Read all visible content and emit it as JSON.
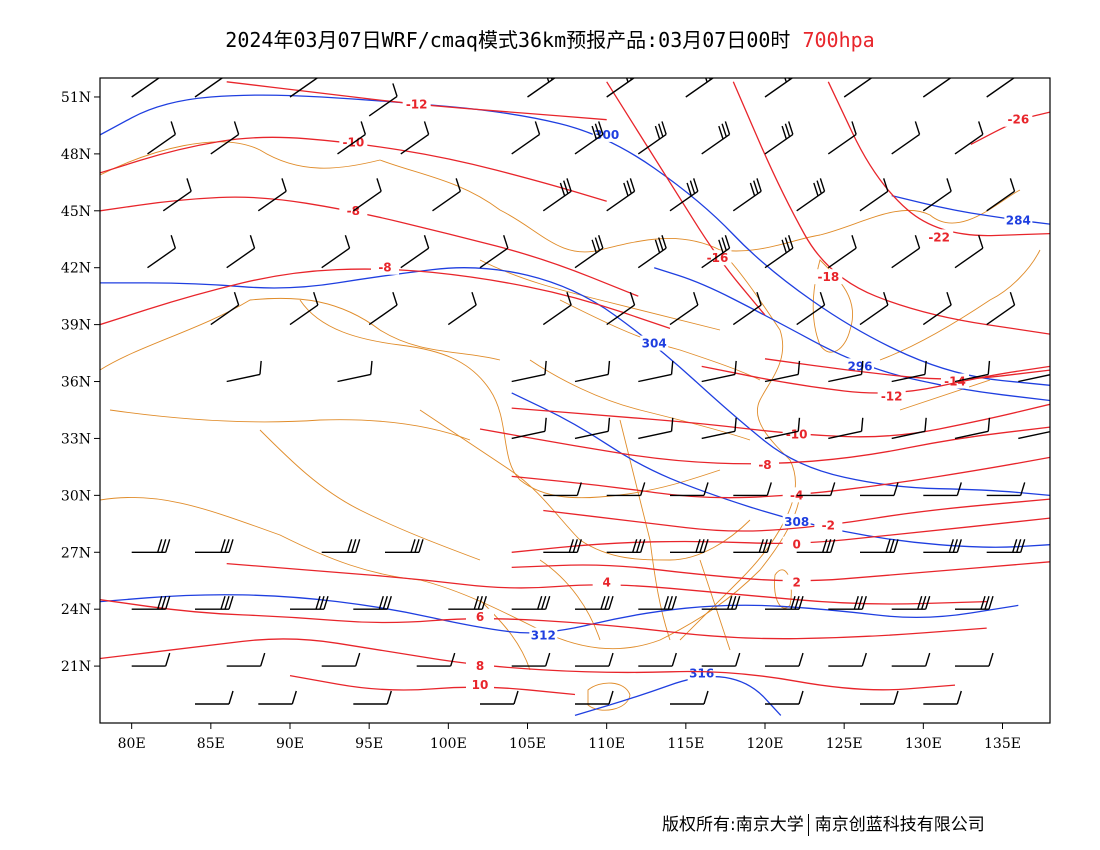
{
  "title": {
    "main": "2024年03月07日WRF/cmaq模式36km预报产品:03月07日00时 ",
    "level": "700hpa"
  },
  "footer": {
    "left": "版权所有:南京大学",
    "right": "南京创蓝科技有限公司"
  },
  "colors": {
    "temperature": "#e8252b",
    "height": "#1f3fe0",
    "border": "#e08c2a",
    "wind": "#000000"
  },
  "map": {
    "lon_range": [
      78,
      138
    ],
    "lat_range": [
      18,
      52
    ],
    "lon_ticks": [
      {
        "v": 80,
        "t": "80E"
      },
      {
        "v": 85,
        "t": "85E"
      },
      {
        "v": 90,
        "t": "90E"
      },
      {
        "v": 95,
        "t": "95E"
      },
      {
        "v": 100,
        "t": "100E"
      },
      {
        "v": 105,
        "t": "105E"
      },
      {
        "v": 110,
        "t": "110E"
      },
      {
        "v": 115,
        "t": "115E"
      },
      {
        "v": 120,
        "t": "120E"
      },
      {
        "v": 125,
        "t": "125E"
      },
      {
        "v": 130,
        "t": "130E"
      },
      {
        "v": 135,
        "t": "135E"
      }
    ],
    "lat_ticks": [
      {
        "v": 21,
        "t": "21N"
      },
      {
        "v": 24,
        "t": "24N"
      },
      {
        "v": 27,
        "t": "27N"
      },
      {
        "v": 30,
        "t": "30N"
      },
      {
        "v": 33,
        "t": "33N"
      },
      {
        "v": 36,
        "t": "36N"
      },
      {
        "v": 39,
        "t": "39N"
      },
      {
        "v": 42,
        "t": "42N"
      },
      {
        "v": 45,
        "t": "45N"
      },
      {
        "v": 48,
        "t": "48N"
      },
      {
        "v": 51,
        "t": "51N"
      }
    ]
  },
  "temperature_contours": [
    {
      "label": "-12",
      "points": [
        [
          86,
          51.8
        ],
        [
          92,
          51.2
        ],
        [
          98,
          50.6
        ],
        [
          104,
          50.2
        ],
        [
          110,
          49.8
        ]
      ]
    },
    {
      "label": "-10",
      "points": [
        [
          78,
          47.0
        ],
        [
          83,
          48.3
        ],
        [
          88,
          49.0
        ],
        [
          94,
          48.6
        ],
        [
          100,
          47.8
        ],
        [
          106,
          46.5
        ],
        [
          110,
          45.5
        ]
      ]
    },
    {
      "label": "-8",
      "points": [
        [
          78,
          45.0
        ],
        [
          83,
          45.6
        ],
        [
          88,
          45.8
        ],
        [
          94,
          45.0
        ],
        [
          100,
          43.8
        ],
        [
          106,
          42.5
        ],
        [
          112,
          40.5
        ]
      ]
    },
    {
      "label": "-8",
      "points": [
        [
          78,
          39.0
        ],
        [
          84,
          40.6
        ],
        [
          90,
          41.8
        ],
        [
          96,
          42.0
        ],
        [
          102,
          41.5
        ],
        [
          108,
          40.5
        ],
        [
          114,
          38.8
        ]
      ]
    },
    {
      "label": "-16",
      "points": [
        [
          110,
          51.8
        ],
        [
          114,
          46.5
        ],
        [
          117,
          42.5
        ],
        [
          120,
          39.5
        ]
      ]
    },
    {
      "label": "-18",
      "points": [
        [
          118,
          51.8
        ],
        [
          121,
          46.0
        ],
        [
          124,
          41.5
        ],
        [
          130,
          39.5
        ],
        [
          138,
          38.5
        ]
      ]
    },
    {
      "label": "-22",
      "points": [
        [
          124,
          51.8
        ],
        [
          127,
          46.5
        ],
        [
          131,
          43.6
        ],
        [
          138,
          43.8
        ]
      ]
    },
    {
      "label": "-26",
      "points": [
        [
          133,
          48.5
        ],
        [
          136,
          49.8
        ],
        [
          138,
          50.2
        ]
      ]
    },
    {
      "label": "-14",
      "points": [
        [
          120,
          37.2
        ],
        [
          126,
          36.5
        ],
        [
          132,
          36.0
        ],
        [
          138,
          36.6
        ]
      ]
    },
    {
      "label": "-12",
      "points": [
        [
          116,
          36.8
        ],
        [
          122,
          35.8
        ],
        [
          128,
          35.2
        ],
        [
          134,
          36.3
        ],
        [
          138,
          36.8
        ]
      ]
    },
    {
      "label": "-10",
      "points": [
        [
          104,
          34.6
        ],
        [
          110,
          34.2
        ],
        [
          116,
          33.8
        ],
        [
          122,
          33.2
        ],
        [
          128,
          33.0
        ],
        [
          134,
          34.0
        ],
        [
          138,
          34.8
        ]
      ]
    },
    {
      "label": "-8",
      "points": [
        [
          102,
          33.5
        ],
        [
          108,
          32.6
        ],
        [
          114,
          31.8
        ],
        [
          120,
          31.6
        ],
        [
          126,
          32.0
        ],
        [
          132,
          33.0
        ],
        [
          138,
          33.6
        ]
      ]
    },
    {
      "label": "-4",
      "points": [
        [
          104,
          31.0
        ],
        [
          110,
          30.5
        ],
        [
          116,
          29.8
        ],
        [
          122,
          30.0
        ],
        [
          128,
          30.6
        ],
        [
          134,
          31.4
        ],
        [
          138,
          32.0
        ]
      ]
    },
    {
      "label": "-2",
      "points": [
        [
          106,
          29.2
        ],
        [
          112,
          28.6
        ],
        [
          118,
          28.0
        ],
        [
          124,
          28.4
        ],
        [
          130,
          29.2
        ],
        [
          138,
          29.8
        ]
      ]
    },
    {
      "label": "0",
      "points": [
        [
          104,
          27.0
        ],
        [
          110,
          27.5
        ],
        [
          116,
          27.6
        ],
        [
          122,
          27.4
        ],
        [
          128,
          27.9
        ],
        [
          138,
          28.8
        ]
      ]
    },
    {
      "label": "2",
      "points": [
        [
          104,
          26.2
        ],
        [
          110,
          26.4
        ],
        [
          116,
          25.8
        ],
        [
          122,
          25.4
        ],
        [
          128,
          25.8
        ],
        [
          138,
          26.5
        ]
      ]
    },
    {
      "label": "4",
      "points": [
        [
          86,
          26.4
        ],
        [
          92,
          26.0
        ],
        [
          98,
          25.6
        ],
        [
          104,
          25.0
        ],
        [
          110,
          25.4
        ],
        [
          118,
          24.8
        ],
        [
          126,
          24.2
        ],
        [
          134,
          24.4
        ]
      ]
    },
    {
      "label": "6",
      "points": [
        [
          78,
          24.5
        ],
        [
          84,
          23.8
        ],
        [
          90,
          23.6
        ],
        [
          96,
          23.2
        ],
        [
          102,
          23.6
        ],
        [
          110,
          23.2
        ],
        [
          118,
          22.4
        ],
        [
          126,
          22.5
        ],
        [
          134,
          23.0
        ]
      ]
    },
    {
      "label": "8",
      "points": [
        [
          78,
          21.4
        ],
        [
          84,
          22.0
        ],
        [
          90,
          22.6
        ],
        [
          96,
          21.8
        ],
        [
          102,
          21.0
        ],
        [
          110,
          20.6
        ],
        [
          118,
          20.8
        ],
        [
          126,
          19.6
        ],
        [
          132,
          20.0
        ]
      ]
    },
    {
      "label": "10",
      "points": [
        [
          90,
          20.5
        ],
        [
          96,
          19.6
        ],
        [
          102,
          20.0
        ],
        [
          108,
          19.5
        ]
      ]
    }
  ],
  "height_contours": [
    {
      "label": "300",
      "points": [
        [
          78,
          49.0
        ],
        [
          82,
          50.8
        ],
        [
          88,
          51.2
        ],
        [
          96,
          50.8
        ],
        [
          104,
          50.2
        ],
        [
          110,
          49.0
        ],
        [
          116,
          45.5
        ],
        [
          120,
          42.0
        ],
        [
          126,
          38.5
        ],
        [
          132,
          36.3
        ],
        [
          138,
          35.8
        ]
      ]
    },
    {
      "label": "304",
      "points": [
        [
          78,
          41.2
        ],
        [
          84,
          41.2
        ],
        [
          90,
          40.8
        ],
        [
          96,
          41.6
        ],
        [
          102,
          42.2
        ],
        [
          108,
          41.0
        ],
        [
          113,
          38.0
        ],
        [
          118,
          34.2
        ],
        [
          122,
          31.5
        ],
        [
          128,
          30.4
        ],
        [
          134,
          30.3
        ],
        [
          138,
          30.0
        ]
      ]
    },
    {
      "label": "308",
      "points": [
        [
          104,
          35.4
        ],
        [
          108,
          33.8
        ],
        [
          112,
          31.6
        ],
        [
          116,
          30.2
        ],
        [
          122,
          28.6
        ],
        [
          128,
          27.6
        ],
        [
          134,
          27.2
        ],
        [
          138,
          27.4
        ]
      ]
    },
    {
      "label": "312",
      "points": [
        [
          78,
          24.4
        ],
        [
          84,
          24.8
        ],
        [
          90,
          24.7
        ],
        [
          96,
          24.1
        ],
        [
          102,
          23.0
        ],
        [
          106,
          22.6
        ],
        [
          112,
          23.8
        ],
        [
          118,
          24.3
        ],
        [
          124,
          24.0
        ],
        [
          130,
          23.4
        ],
        [
          136,
          24.2
        ]
      ]
    },
    {
      "label": "316",
      "points": [
        [
          108,
          18.4
        ],
        [
          112,
          19.4
        ],
        [
          116,
          20.6
        ],
        [
          119,
          20.2
        ],
        [
          121,
          18.4
        ]
      ]
    },
    {
      "label": "284",
      "points": [
        [
          128,
          45.8
        ],
        [
          132,
          45.0
        ],
        [
          136,
          44.5
        ],
        [
          138,
          44.3
        ]
      ]
    },
    {
      "label": "296",
      "points": [
        [
          113,
          42.0
        ],
        [
          116,
          41.2
        ],
        [
          120,
          39.5
        ],
        [
          126,
          36.8
        ],
        [
          132,
          35.6
        ],
        [
          138,
          35.0
        ]
      ]
    }
  ],
  "wind_barbs": [
    [
      80,
      51
    ],
    [
      84,
      51
    ],
    [
      90,
      51
    ],
    [
      95,
      50
    ],
    [
      105,
      51
    ],
    [
      110,
      51
    ],
    [
      115,
      51
    ],
    [
      120,
      51
    ],
    [
      125,
      51
    ],
    [
      130,
      51
    ],
    [
      134,
      51
    ],
    [
      81,
      48
    ],
    [
      85,
      48
    ],
    [
      93,
      48
    ],
    [
      97,
      48
    ],
    [
      104,
      48
    ],
    [
      108,
      48
    ],
    [
      112,
      48
    ],
    [
      116,
      48
    ],
    [
      120,
      48
    ],
    [
      124,
      48
    ],
    [
      128,
      48
    ],
    [
      132,
      48
    ],
    [
      82,
      45
    ],
    [
      88,
      45
    ],
    [
      94,
      45
    ],
    [
      99,
      45
    ],
    [
      106,
      45
    ],
    [
      110,
      45
    ],
    [
      114,
      45
    ],
    [
      118,
      45
    ],
    [
      122,
      45
    ],
    [
      126,
      45
    ],
    [
      130,
      45
    ],
    [
      134,
      45
    ],
    [
      81,
      42
    ],
    [
      86,
      42
    ],
    [
      92,
      42
    ],
    [
      97,
      42
    ],
    [
      102,
      42
    ],
    [
      108,
      42
    ],
    [
      112,
      42
    ],
    [
      116,
      42
    ],
    [
      120,
      42
    ],
    [
      124,
      42
    ],
    [
      128,
      42
    ],
    [
      132,
      42
    ],
    [
      85,
      39
    ],
    [
      90,
      39
    ],
    [
      95,
      39
    ],
    [
      100,
      39
    ],
    [
      106,
      39
    ],
    [
      110,
      39
    ],
    [
      114,
      39
    ],
    [
      118,
      39
    ],
    [
      122,
      39
    ],
    [
      126,
      39
    ],
    [
      130,
      39
    ],
    [
      134,
      39
    ],
    [
      86,
      36
    ],
    [
      93,
      36
    ],
    [
      104,
      36
    ],
    [
      108,
      36
    ],
    [
      112,
      36
    ],
    [
      116,
      36
    ],
    [
      120,
      36
    ],
    [
      124,
      36
    ],
    [
      128,
      36
    ],
    [
      132,
      36
    ],
    [
      136,
      36
    ],
    [
      104,
      33
    ],
    [
      108,
      33
    ],
    [
      112,
      33
    ],
    [
      116,
      33
    ],
    [
      120,
      33
    ],
    [
      124,
      33
    ],
    [
      128,
      33
    ],
    [
      132,
      33
    ],
    [
      136,
      33
    ],
    [
      106,
      30
    ],
    [
      110,
      30
    ],
    [
      114,
      30
    ],
    [
      118,
      30
    ],
    [
      122,
      30
    ],
    [
      126,
      30
    ],
    [
      130,
      30
    ],
    [
      134,
      30
    ],
    [
      80,
      27
    ],
    [
      84,
      27
    ],
    [
      92,
      27
    ],
    [
      96,
      27
    ],
    [
      106,
      27
    ],
    [
      110,
      27
    ],
    [
      114,
      27
    ],
    [
      118,
      27
    ],
    [
      122,
      27
    ],
    [
      126,
      27
    ],
    [
      130,
      27
    ],
    [
      134,
      27
    ],
    [
      80,
      24
    ],
    [
      84,
      24
    ],
    [
      90,
      24
    ],
    [
      94,
      24
    ],
    [
      100,
      24
    ],
    [
      104,
      24
    ],
    [
      108,
      24
    ],
    [
      112,
      24
    ],
    [
      116,
      24
    ],
    [
      120,
      24
    ],
    [
      124,
      24
    ],
    [
      128,
      24
    ],
    [
      132,
      24
    ],
    [
      80,
      21
    ],
    [
      86,
      21
    ],
    [
      92,
      21
    ],
    [
      98,
      21
    ],
    [
      104,
      21
    ],
    [
      108,
      21
    ],
    [
      112,
      21
    ],
    [
      116,
      21
    ],
    [
      120,
      21
    ],
    [
      124,
      21
    ],
    [
      128,
      21
    ],
    [
      132,
      21
    ],
    [
      84,
      19
    ],
    [
      88,
      19
    ],
    [
      94,
      19
    ],
    [
      102,
      19
    ],
    [
      108,
      19
    ],
    [
      114,
      19
    ],
    [
      120,
      19
    ],
    [
      126,
      19
    ],
    [
      130,
      19
    ]
  ]
}
